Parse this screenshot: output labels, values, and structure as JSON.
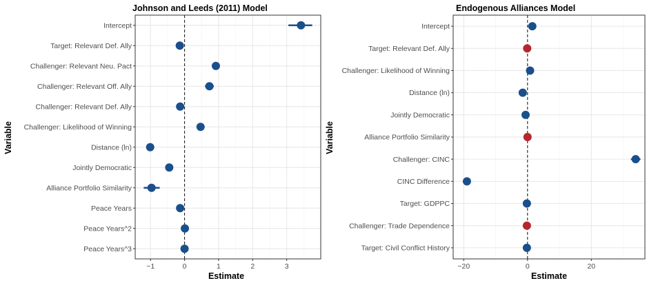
{
  "colors": {
    "significant": "#1a4f8c",
    "insignificant": "#b5272d",
    "grid_major": "#e6e6e6",
    "grid_minor": "#f3f3f3",
    "border": "#333333"
  },
  "chart_data": [
    {
      "type": "scatter",
      "style": "coefficient dot-and-whisker plot",
      "title": "Johnson and Leeds (2011) Model",
      "xlabel": "Estimate",
      "ylabel": "Variable",
      "xlim": [
        -1.45,
        4.0
      ],
      "xticks": [
        -1,
        0,
        1,
        2,
        3
      ],
      "xtick_labels": [
        "−1",
        "0",
        "1",
        "2",
        "3"
      ],
      "zero_line": 0,
      "grid": true,
      "legend": "none",
      "points": [
        {
          "variable": "Intercept",
          "estimate": 3.42,
          "lo": 3.05,
          "hi": 3.75,
          "color": "#1a4f8c"
        },
        {
          "variable": "Target: Relevant Def. Ally",
          "estimate": -0.14,
          "lo": -0.24,
          "hi": -0.04,
          "color": "#1a4f8c"
        },
        {
          "variable": "Challenger: Relevant Neu. Pact",
          "estimate": 0.92,
          "lo": 0.82,
          "hi": 1.02,
          "color": "#1a4f8c"
        },
        {
          "variable": "Challenger: Relevant Off. Ally",
          "estimate": 0.73,
          "lo": 0.6,
          "hi": 0.86,
          "color": "#1a4f8c"
        },
        {
          "variable": "Challenger: Relevant Def. Ally",
          "estimate": -0.13,
          "lo": -0.22,
          "hi": -0.04,
          "color": "#1a4f8c"
        },
        {
          "variable": "Challenger: Likelihood of Winning",
          "estimate": 0.47,
          "lo": 0.39,
          "hi": 0.55,
          "color": "#1a4f8c"
        },
        {
          "variable": "Distance (ln)",
          "estimate": -1.01,
          "lo": -1.08,
          "hi": -0.94,
          "color": "#1a4f8c"
        },
        {
          "variable": "Jointly Democratic",
          "estimate": -0.45,
          "lo": -0.56,
          "hi": -0.34,
          "color": "#1a4f8c"
        },
        {
          "variable": "Alliance Portfolio Similarity",
          "estimate": -0.97,
          "lo": -1.2,
          "hi": -0.73,
          "color": "#1a4f8c"
        },
        {
          "variable": "Peace Years",
          "estimate": -0.13,
          "lo": -0.19,
          "hi": -0.07,
          "color": "#1a4f8c"
        },
        {
          "variable": "Peace Years^2",
          "estimate": 0.01,
          "lo": -0.02,
          "hi": 0.04,
          "color": "#1a4f8c"
        },
        {
          "variable": "Peace Years^3",
          "estimate": 0.0,
          "lo": -0.03,
          "hi": 0.03,
          "color": "#1a4f8c"
        }
      ]
    },
    {
      "type": "scatter",
      "style": "coefficient dot-and-whisker plot",
      "title": "Endogenous Alliances Model",
      "xlabel": "Estimate",
      "ylabel": "Variable",
      "xlim": [
        -23.3,
        36.8
      ],
      "xticks": [
        -20,
        0,
        20
      ],
      "xtick_labels": [
        "−20",
        "0",
        "20"
      ],
      "zero_line": 0,
      "grid": true,
      "legend": "none",
      "points": [
        {
          "variable": "Intercept",
          "estimate": 1.5,
          "lo": 1.0,
          "hi": 2.0,
          "color": "#1a4f8c"
        },
        {
          "variable": "Target: Relevant Def. Ally",
          "estimate": -0.1,
          "lo": -0.4,
          "hi": 0.2,
          "color": "#b5272d"
        },
        {
          "variable": "Challenger: Likelihood of Winning",
          "estimate": 0.8,
          "lo": 0.5,
          "hi": 1.1,
          "color": "#1a4f8c"
        },
        {
          "variable": "Distance (ln)",
          "estimate": -1.5,
          "lo": -1.9,
          "hi": -1.1,
          "color": "#1a4f8c"
        },
        {
          "variable": "Jointly Democratic",
          "estimate": -0.6,
          "lo": -1.0,
          "hi": -0.2,
          "color": "#1a4f8c"
        },
        {
          "variable": "Alliance Portfolio Similarity",
          "estimate": 0.0,
          "lo": -0.4,
          "hi": 0.4,
          "color": "#b5272d"
        },
        {
          "variable": "Challenger: CINC",
          "estimate": 33.9,
          "lo": 32.4,
          "hi": 35.4,
          "color": "#1a4f8c"
        },
        {
          "variable": "CINC Difference",
          "estimate": -19.0,
          "lo": -20.0,
          "hi": -18.0,
          "color": "#1a4f8c"
        },
        {
          "variable": "Target: GDPPC",
          "estimate": -0.2,
          "lo": -0.5,
          "hi": 0.1,
          "color": "#1a4f8c"
        },
        {
          "variable": "Challenger: Trade Dependence",
          "estimate": -0.2,
          "lo": -0.5,
          "hi": 0.1,
          "color": "#b5272d"
        },
        {
          "variable": "Target: Civil Conflict History",
          "estimate": -0.2,
          "lo": -0.5,
          "hi": 0.1,
          "color": "#1a4f8c"
        }
      ]
    }
  ]
}
